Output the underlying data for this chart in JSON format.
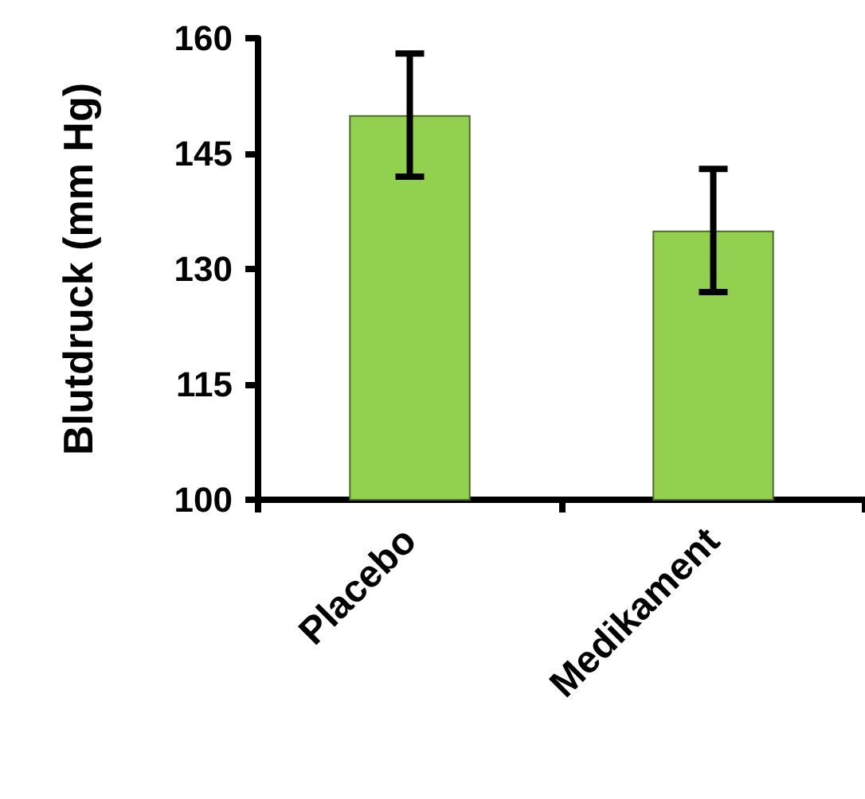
{
  "chart_data": {
    "type": "bar",
    "ylabel": "Blutdruck (mm Hg)",
    "categories": [
      "Placebo",
      "Medikament"
    ],
    "series": [
      {
        "color": "#92d050",
        "values": [
          150,
          135
        ],
        "errors": [
          8,
          8
        ]
      }
    ],
    "ylim": [
      100,
      160
    ],
    "yticks": [
      100,
      115,
      130,
      145,
      160
    ],
    "grid": false
  }
}
